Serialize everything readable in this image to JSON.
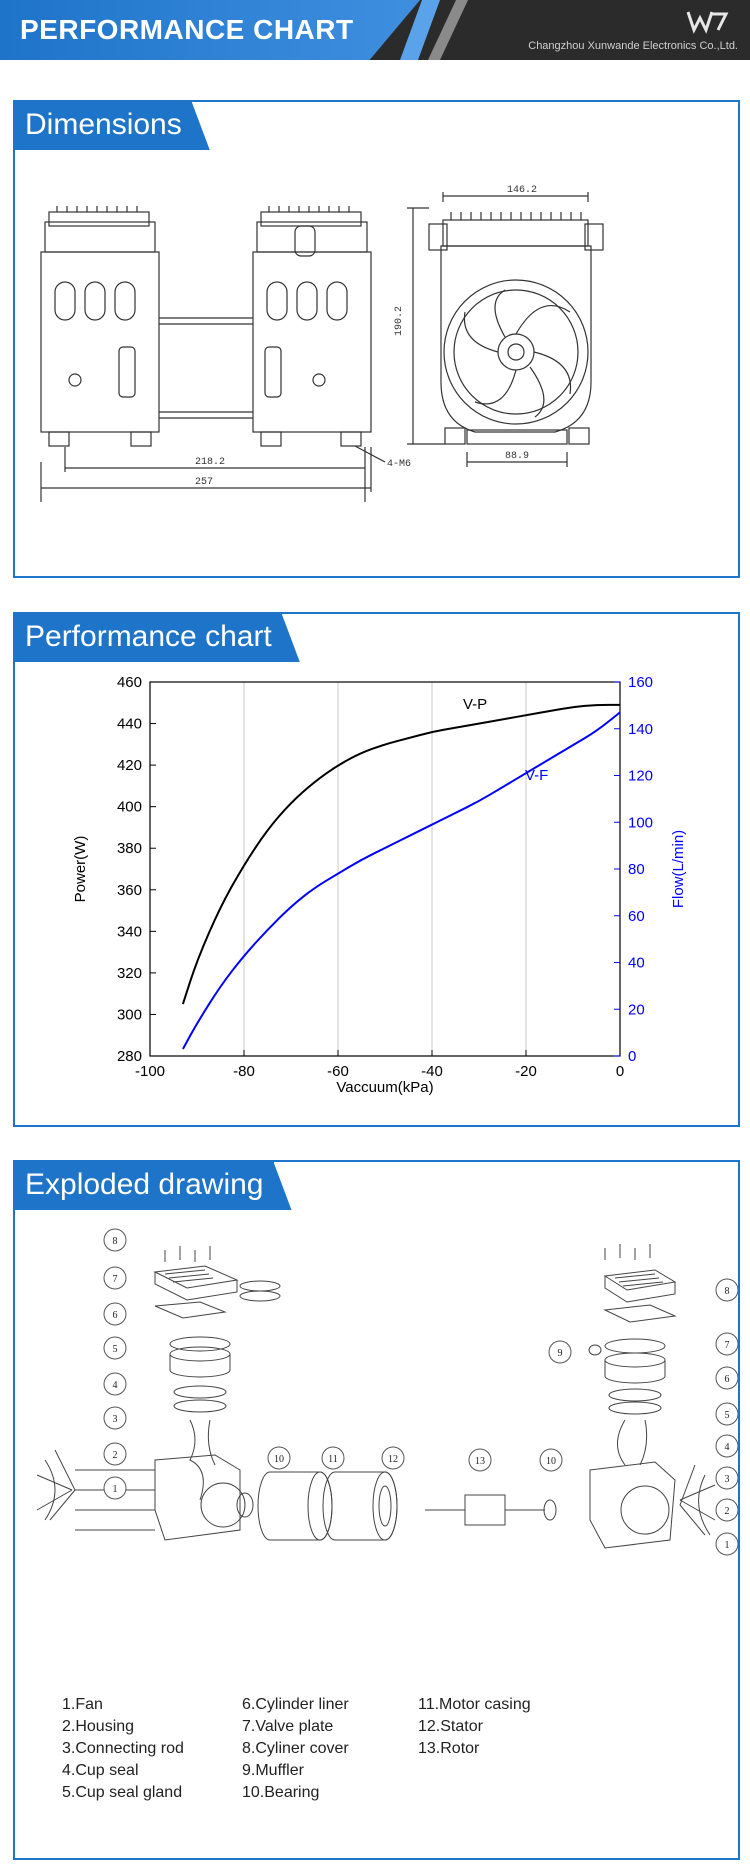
{
  "header": {
    "title": "PERFORMANCE CHART",
    "company": "Changzhou Xunwande Electronics Co.,Ltd."
  },
  "sections": {
    "dimensions": "Dimensions",
    "performance": "Performance chart",
    "exploded": "Exploded drawing"
  },
  "dimensions": {
    "width_top": "146.2",
    "height": "190.2",
    "base_width": "88.9",
    "length_inner": "218.2",
    "length_total": "257",
    "holes": "4-M6"
  },
  "chart_data": {
    "type": "line",
    "xlabel": "Vaccuum(kPa)",
    "ylabel": "Power(W)",
    "y2label": "Flow(L/min)",
    "xlim": [
      -100,
      0
    ],
    "ylim": [
      280,
      460
    ],
    "y2lim": [
      0,
      160
    ],
    "xticks": [
      "-100",
      "-80",
      "-60",
      "-40",
      "-20",
      "0"
    ],
    "yticks": [
      "460",
      "440",
      "420",
      "400",
      "380",
      "360",
      "340",
      "320",
      "300",
      "280"
    ],
    "y2ticks": [
      "160",
      "140",
      "120",
      "100",
      "80",
      "60",
      "40",
      "20",
      "0"
    ],
    "grid": true,
    "series": [
      {
        "name": "V-P",
        "axis": "left",
        "color": "#000000",
        "x": [
          -93,
          -90,
          -85,
          -80,
          -75,
          -70,
          -65,
          -60,
          -55,
          -50,
          -45,
          -40,
          -35,
          -30,
          -25,
          -20,
          -15,
          -10,
          -5,
          0
        ],
        "y": [
          305,
          326,
          352,
          372,
          389,
          402,
          412,
          420,
          426,
          430,
          433,
          436,
          438,
          440,
          442,
          444,
          446,
          448,
          449,
          449
        ]
      },
      {
        "name": "V-F",
        "axis": "right",
        "color": "#0000ff",
        "x": [
          -93,
          -90,
          -85,
          -80,
          -75,
          -70,
          -65,
          -60,
          -55,
          -50,
          -45,
          -40,
          -35,
          -30,
          -25,
          -20,
          -15,
          -10,
          -5,
          0
        ],
        "y": [
          3,
          14,
          30,
          43,
          54,
          64,
          72,
          78,
          84,
          89,
          94,
          99,
          104,
          109,
          115,
          121,
          127,
          133,
          139,
          147
        ]
      }
    ]
  },
  "exploded": {
    "callouts": [
      "1",
      "2",
      "3",
      "4",
      "5",
      "6",
      "7",
      "8",
      "9",
      "10",
      "11",
      "12",
      "13"
    ],
    "legend": {
      "col1": [
        "1.Fan",
        "2.Housing",
        "3.Connecting rod",
        "4.Cup seal",
        "5.Cup seal gland"
      ],
      "col2": [
        "6.Cylinder liner",
        "7.Valve plate",
        "8.Cyliner cover",
        "9.Muffler",
        "10.Bearing"
      ],
      "col3": [
        "11.Motor casing",
        "12.Stator",
        "13.Rotor"
      ]
    }
  },
  "colors": {
    "accent": "#1e74c9",
    "banner_dark": "#2b2b2b",
    "vp_line": "#000000",
    "vf_line": "#0000ff"
  }
}
